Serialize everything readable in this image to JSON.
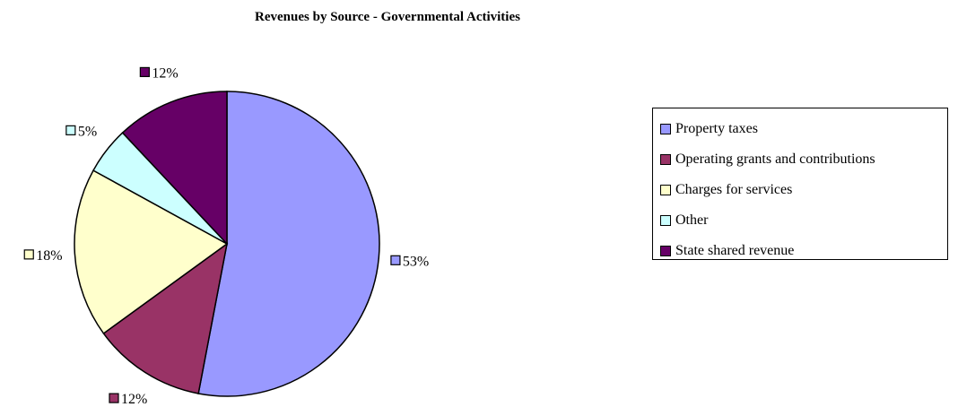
{
  "chart_data": {
    "type": "pie",
    "title": "Revenues by Source - Governmental Activities",
    "slices": [
      {
        "label": "Property taxes",
        "value": 53,
        "display": "53%",
        "color": "#9999FF"
      },
      {
        "label": "Operating grants and contributions",
        "value": 12,
        "display": "12%",
        "color": "#993366"
      },
      {
        "label": "Charges for services",
        "value": 18,
        "display": "18%",
        "color": "#FFFFCC"
      },
      {
        "label": "Other",
        "value": 5,
        "display": "5%",
        "color": "#CCFFFF"
      },
      {
        "label": "State shared revenue",
        "value": 12,
        "display": "12%",
        "color": "#660066"
      }
    ],
    "legend_position": "right"
  }
}
